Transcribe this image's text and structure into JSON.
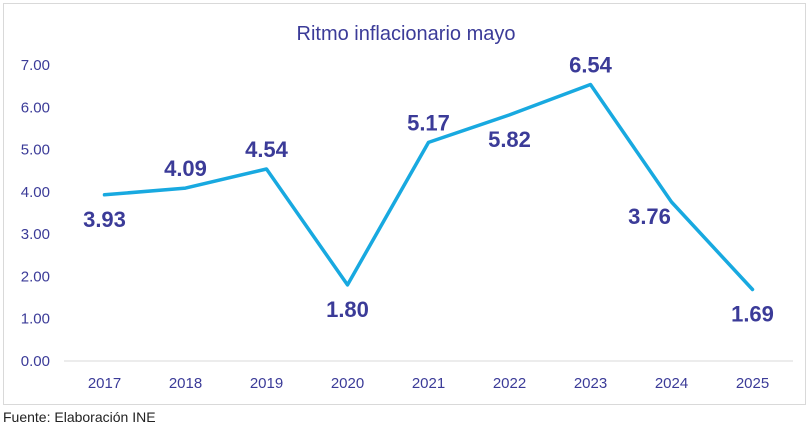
{
  "chart_data": {
    "type": "line",
    "title": "Ritmo inflacionario mayo",
    "xlabel": "",
    "ylabel": "",
    "categories": [
      "2017",
      "2018",
      "2019",
      "2020",
      "2021",
      "2022",
      "2023",
      "2024",
      "2025"
    ],
    "series": [
      {
        "name": "Ritmo inflacionario",
        "values": [
          3.93,
          4.09,
          4.54,
          1.8,
          5.17,
          5.82,
          6.54,
          3.76,
          1.69
        ],
        "labels": [
          "3.93",
          "4.09",
          "4.54",
          "1.80",
          "5.17",
          "5.82",
          "6.54",
          "3.76",
          "1.69"
        ],
        "label_position": [
          "below",
          "above",
          "above",
          "below",
          "above",
          "below",
          "above",
          "left",
          "below"
        ]
      }
    ],
    "ylim": [
      0,
      7
    ],
    "yticks": [
      0,
      1,
      2,
      3,
      4,
      5,
      6,
      7
    ],
    "ytick_labels": [
      "0.00",
      "1.00",
      "2.00",
      "3.00",
      "4.00",
      "5.00",
      "6.00",
      "7.00"
    ],
    "grid": false,
    "legend": "none"
  },
  "colors": {
    "line": "#18a9e0",
    "text": "#3b3b98",
    "axis": "#d9d9d9"
  },
  "source": "Fuente: Elaboración INE"
}
